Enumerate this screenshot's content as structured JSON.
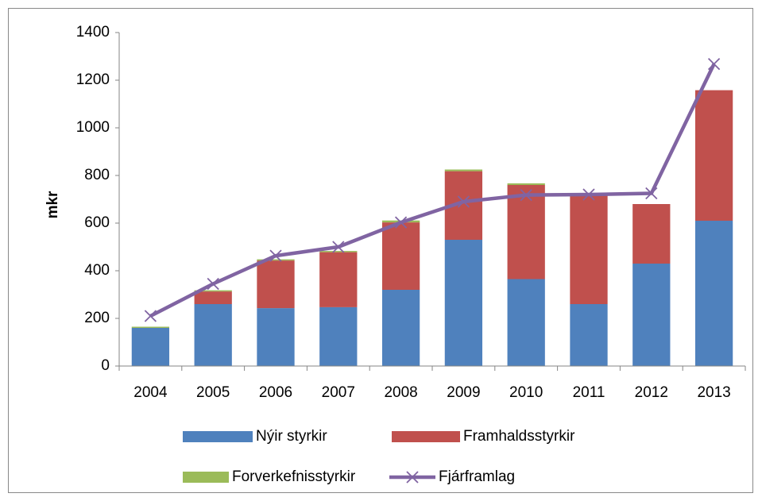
{
  "chart_data": {
    "type": "bar",
    "stacked": true,
    "y_label": "mkr",
    "categories": [
      "2004",
      "2005",
      "2006",
      "2007",
      "2008",
      "2009",
      "2010",
      "2011",
      "2012",
      "2013"
    ],
    "series": [
      {
        "name": "Nýir styrkir",
        "color": "#4f81bd",
        "values": [
          160,
          260,
          243,
          247,
          320,
          530,
          365,
          260,
          430,
          610
        ]
      },
      {
        "name": "Framhaldsstyrkir",
        "color": "#c0504d",
        "values": [
          0,
          53,
          200,
          231,
          283,
          288,
          395,
          458,
          250,
          548
        ]
      },
      {
        "name": "Forverkefnisstyrkir",
        "color": "#9bbb59",
        "values": [
          5,
          5,
          5,
          5,
          8,
          7,
          7,
          2,
          0,
          0
        ]
      },
      {
        "name": "Fjárframlag",
        "type": "line",
        "color": "#8064a2",
        "values": [
          210,
          345,
          463,
          500,
          603,
          690,
          718,
          720,
          725,
          1268
        ]
      }
    ],
    "ylim": [
      0,
      1400
    ],
    "yticks": [
      0,
      200,
      400,
      600,
      800,
      1000,
      1200,
      1400
    ],
    "grid": false,
    "legend": "bottom"
  }
}
